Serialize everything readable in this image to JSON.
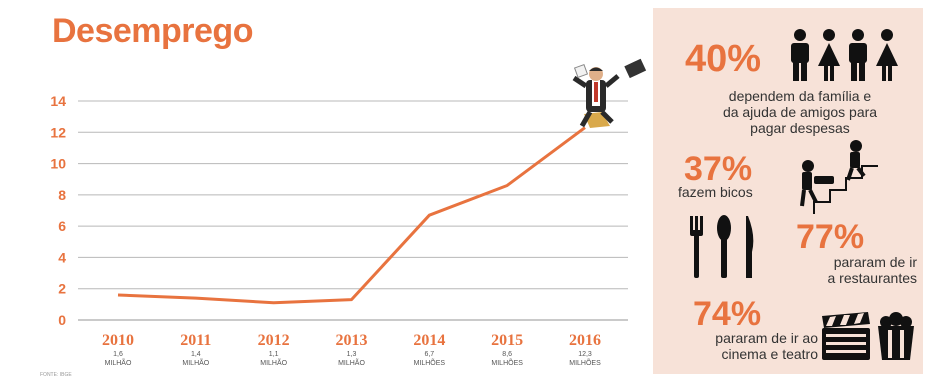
{
  "title": "Desemprego",
  "source": "FONTE: IBGE",
  "colors": {
    "accent": "#e8733f",
    "line": "#e8733f",
    "grid": "#b8b8b8",
    "panel": "#f7e2d8",
    "text": "#333333"
  },
  "chart_data": {
    "type": "line",
    "title": "Desemprego",
    "xlabel": "",
    "ylabel": "",
    "ylim": [
      0,
      14
    ],
    "yticks": [
      0,
      2,
      4,
      6,
      8,
      10,
      12,
      14
    ],
    "grid": true,
    "categories": [
      "2010",
      "2011",
      "2012",
      "2013",
      "2014",
      "2015",
      "2016"
    ],
    "sublabels": [
      "1,6 MILHÃO",
      "1,4 MILHÃO",
      "1,1 MILHÃO",
      "1,3 MILHÃO",
      "6,7 MILHÕES",
      "8,6 MILHÕES",
      "12,3 MILHÕES"
    ],
    "values": [
      1.6,
      1.4,
      1.1,
      1.3,
      6.7,
      8.6,
      12.3
    ]
  },
  "stats": [
    {
      "pct": "40%",
      "text": [
        "dependem da família e",
        "da ajuda de amigos para",
        "pagar despesas"
      ],
      "icon": "people-icon"
    },
    {
      "pct": "37%",
      "text": [
        "fazem bicos"
      ],
      "icon": "stairs-workers-icon"
    },
    {
      "pct": "77%",
      "text": [
        "pararam de ir",
        "a restaurantes"
      ],
      "icon": "cutlery-icon"
    },
    {
      "pct": "74%",
      "text": [
        "pararam de ir ao",
        "cinema e teatro"
      ],
      "icon": "cinema-icon"
    }
  ]
}
